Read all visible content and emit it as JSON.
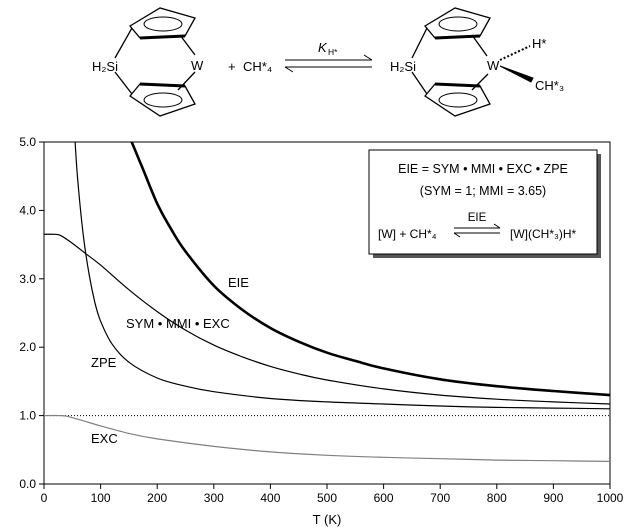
{
  "scheme": {
    "reactant_si": "H₂Si",
    "reactant_w": "W",
    "plus_sign": "+",
    "methane": "CH*₄",
    "equilibrium_constant": "K",
    "equilibrium_constant_sub": "H*",
    "product_si": "H₂Si",
    "product_w": "W",
    "product_h": "H*",
    "product_ch3": "CH*₃"
  },
  "inset": {
    "equation": "EIE = SYM • MMI • EXC • ZPE",
    "condition": "(SYM = 1; MMI = 3.65)",
    "reaction_left": "[W] + CH*₄",
    "arrow_label": "EIE",
    "reaction_right": "[W](CH*₃)H*"
  },
  "chart_data": {
    "type": "line",
    "title": "",
    "xlabel": "T (K)",
    "ylabel": "",
    "xlim": [
      0,
      1000
    ],
    "ylim": [
      0,
      5.0
    ],
    "x_ticks": [
      0,
      100,
      200,
      300,
      400,
      500,
      600,
      700,
      800,
      900,
      1000
    ],
    "y_ticks": [
      0.0,
      1.0,
      2.0,
      3.0,
      4.0,
      5.0
    ],
    "x_tick_labels": [
      "0",
      "100",
      "200",
      "300",
      "400",
      "500",
      "600",
      "700",
      "800",
      "900",
      "1000"
    ],
    "y_tick_labels": [
      "0.0",
      "1.0",
      "2.0",
      "3.0",
      "4.0",
      "5.0"
    ],
    "reference_line": {
      "y": 1.0,
      "style": "dotted"
    },
    "series": [
      {
        "name": "EIE",
        "color": "#000000",
        "emphasis": "bold",
        "x": [
          155,
          175,
          200,
          225,
          250,
          300,
          350,
          400,
          450,
          500,
          550,
          600,
          700,
          800,
          900,
          1000
        ],
        "y": [
          5.0,
          4.6,
          4.1,
          3.72,
          3.4,
          2.9,
          2.55,
          2.28,
          2.08,
          1.92,
          1.8,
          1.69,
          1.53,
          1.43,
          1.36,
          1.3
        ]
      },
      {
        "name": "SYM • MMI • EXC",
        "color": "#000000",
        "emphasis": "normal",
        "x": [
          0,
          20,
          30,
          50,
          75,
          100,
          150,
          200,
          250,
          300,
          350,
          400,
          450,
          500,
          600,
          700,
          800,
          900,
          1000
        ],
        "y": [
          3.65,
          3.65,
          3.63,
          3.52,
          3.36,
          3.2,
          2.84,
          2.52,
          2.25,
          2.03,
          1.86,
          1.72,
          1.61,
          1.52,
          1.39,
          1.3,
          1.24,
          1.2,
          1.17
        ]
      },
      {
        "name": "ZPE",
        "color": "#000000",
        "emphasis": "normal",
        "x": [
          55,
          60,
          70,
          80,
          90,
          100,
          120,
          150,
          200,
          250,
          300,
          400,
          500,
          600,
          700,
          800,
          900,
          1000
        ],
        "y": [
          5.0,
          4.4,
          3.6,
          3.05,
          2.65,
          2.38,
          2.05,
          1.78,
          1.55,
          1.43,
          1.35,
          1.25,
          1.2,
          1.17,
          1.14,
          1.12,
          1.11,
          1.1
        ]
      },
      {
        "name": "EXC",
        "color": "#808080",
        "emphasis": "normal",
        "x": [
          0,
          30,
          50,
          100,
          150,
          200,
          300,
          400,
          500,
          600,
          700,
          800,
          900,
          1000
        ],
        "y": [
          1.0,
          1.0,
          0.97,
          0.85,
          0.74,
          0.66,
          0.55,
          0.47,
          0.42,
          0.39,
          0.37,
          0.35,
          0.34,
          0.33
        ]
      }
    ],
    "curve_labels": [
      {
        "series": "EIE",
        "text": "EIE"
      },
      {
        "series": "SYM • MMI • EXC",
        "text": "SYM • MMI • EXC"
      },
      {
        "series": "ZPE",
        "text": "ZPE"
      },
      {
        "series": "EXC",
        "text": "EXC"
      }
    ]
  }
}
